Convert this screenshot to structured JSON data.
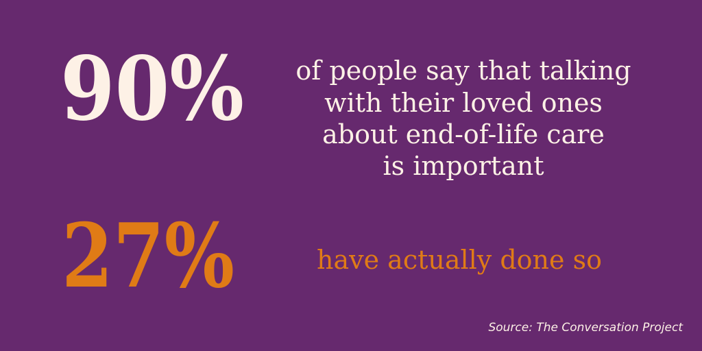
{
  "stats": [
    {
      "figure": "90%",
      "lines": [
        "of people say that talking",
        "with their loved ones",
        "about end-of-life care",
        "is important"
      ]
    },
    {
      "figure": "27%",
      "lines": [
        "have actually done so"
      ]
    }
  ],
  "source": "Source: The Conversation Project"
}
